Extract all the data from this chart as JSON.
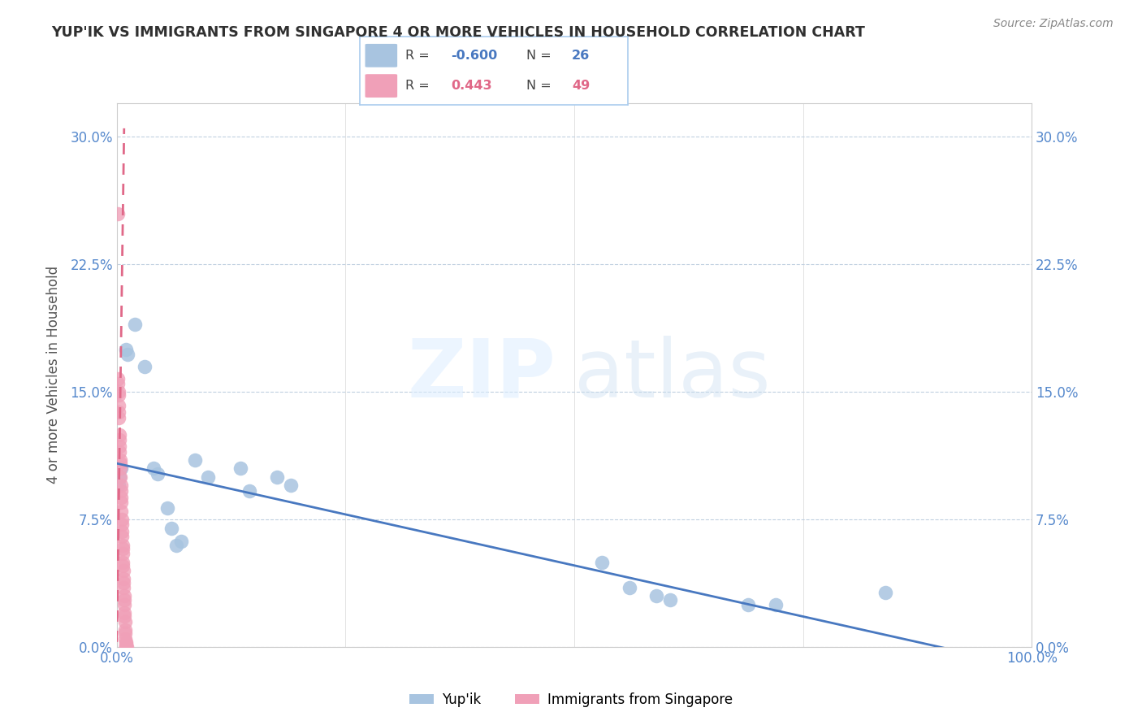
{
  "title": "YUP'IK VS IMMIGRANTS FROM SINGAPORE 4 OR MORE VEHICLES IN HOUSEHOLD CORRELATION CHART",
  "source": "Source: ZipAtlas.com",
  "ylabel": "4 or more Vehicles in Household",
  "ytick_labels": [
    "0.0%",
    "7.5%",
    "15.0%",
    "22.5%",
    "30.0%"
  ],
  "ytick_values": [
    0.0,
    7.5,
    15.0,
    22.5,
    30.0
  ],
  "xlim": [
    0.0,
    100.0
  ],
  "ylim": [
    0.0,
    32.0
  ],
  "legend_blue_R": "-0.600",
  "legend_blue_N": "26",
  "legend_pink_R": "0.443",
  "legend_pink_N": "49",
  "blue_color": "#a8c4e0",
  "pink_color": "#f0a0b8",
  "blue_line_color": "#4878c0",
  "pink_line_color": "#e06888",
  "title_color": "#303030",
  "axis_color": "#5588cc",
  "blue_scatter": [
    [
      0.3,
      10.0
    ],
    [
      0.5,
      10.5
    ],
    [
      1.0,
      17.5
    ],
    [
      1.2,
      17.2
    ],
    [
      2.0,
      19.0
    ],
    [
      3.0,
      16.5
    ],
    [
      4.0,
      10.5
    ],
    [
      4.5,
      10.2
    ],
    [
      5.5,
      8.2
    ],
    [
      6.0,
      7.0
    ],
    [
      6.5,
      6.0
    ],
    [
      7.0,
      6.2
    ],
    [
      8.5,
      11.0
    ],
    [
      10.0,
      10.0
    ],
    [
      13.5,
      10.5
    ],
    [
      14.5,
      9.2
    ],
    [
      17.5,
      10.0
    ],
    [
      19.0,
      9.5
    ],
    [
      53.0,
      5.0
    ],
    [
      56.0,
      3.5
    ],
    [
      59.0,
      3.0
    ],
    [
      60.5,
      2.8
    ],
    [
      69.0,
      2.5
    ],
    [
      72.0,
      2.5
    ],
    [
      84.0,
      3.2
    ],
    [
      0.2,
      9.5
    ]
  ],
  "pink_scatter": [
    [
      0.1,
      25.5
    ],
    [
      0.12,
      15.8
    ],
    [
      0.14,
      15.5
    ],
    [
      0.16,
      15.0
    ],
    [
      0.18,
      14.8
    ],
    [
      0.2,
      14.2
    ],
    [
      0.22,
      13.8
    ],
    [
      0.24,
      13.5
    ],
    [
      0.26,
      12.5
    ],
    [
      0.28,
      12.2
    ],
    [
      0.3,
      11.8
    ],
    [
      0.32,
      11.5
    ],
    [
      0.34,
      11.0
    ],
    [
      0.36,
      10.8
    ],
    [
      0.38,
      10.5
    ],
    [
      0.4,
      10.0
    ],
    [
      0.42,
      9.5
    ],
    [
      0.44,
      9.2
    ],
    [
      0.46,
      8.8
    ],
    [
      0.48,
      8.5
    ],
    [
      0.5,
      8.0
    ],
    [
      0.52,
      7.5
    ],
    [
      0.54,
      7.2
    ],
    [
      0.56,
      6.8
    ],
    [
      0.58,
      6.5
    ],
    [
      0.6,
      6.0
    ],
    [
      0.62,
      5.8
    ],
    [
      0.64,
      5.5
    ],
    [
      0.66,
      5.0
    ],
    [
      0.68,
      4.8
    ],
    [
      0.7,
      4.5
    ],
    [
      0.72,
      4.0
    ],
    [
      0.74,
      3.8
    ],
    [
      0.76,
      3.5
    ],
    [
      0.78,
      3.0
    ],
    [
      0.8,
      2.8
    ],
    [
      0.82,
      2.5
    ],
    [
      0.84,
      2.0
    ],
    [
      0.86,
      1.8
    ],
    [
      0.88,
      1.5
    ],
    [
      0.9,
      1.0
    ],
    [
      0.92,
      0.8
    ],
    [
      0.94,
      0.5
    ],
    [
      0.96,
      0.3
    ],
    [
      0.98,
      0.2
    ],
    [
      1.0,
      0.1
    ],
    [
      1.02,
      0.05
    ],
    [
      1.04,
      0.02
    ],
    [
      1.06,
      0.01
    ]
  ],
  "blue_line_x": [
    0.0,
    100.0
  ],
  "blue_line_y": [
    10.8,
    -1.2
  ],
  "pink_line_x": [
    0.0,
    0.8
  ],
  "pink_line_y": [
    0.3,
    30.5
  ],
  "xtick_positions": [
    0,
    25,
    50,
    75,
    100
  ],
  "xtick_labels": [
    "0.0%",
    "",
    "",
    "",
    "100.0%"
  ]
}
